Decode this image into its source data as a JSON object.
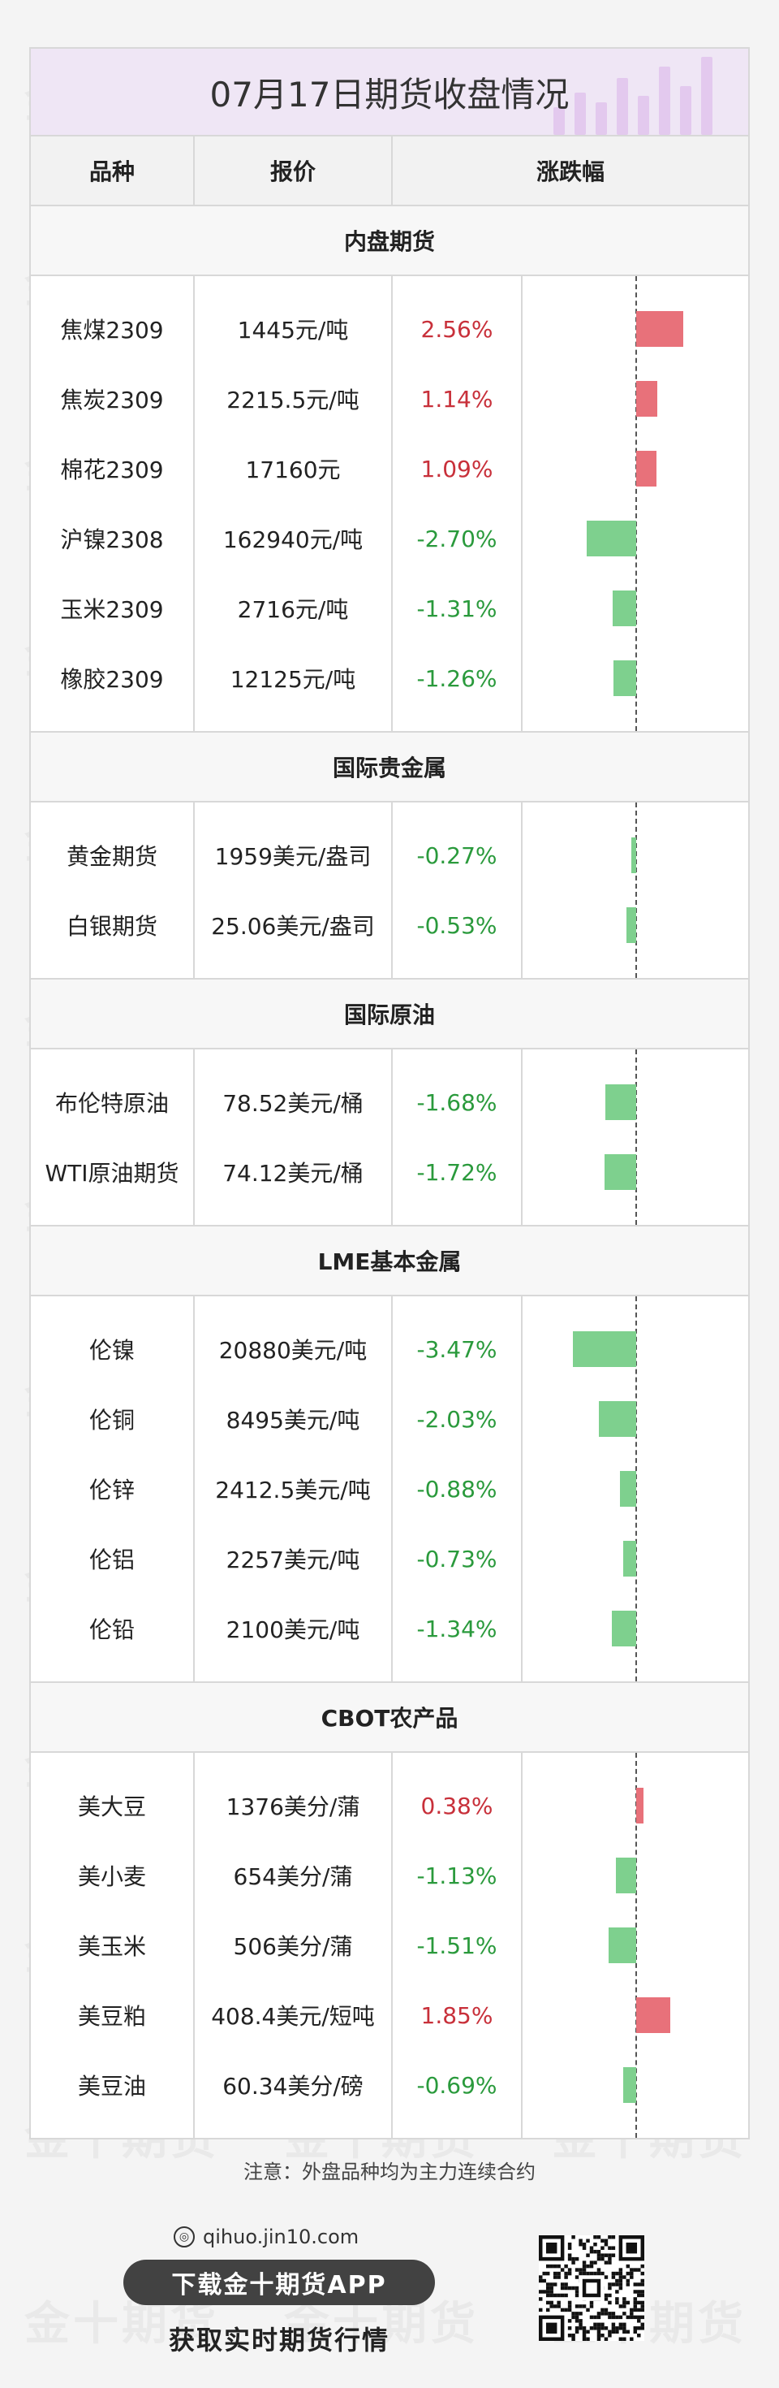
{
  "title": "07月17日期货收盘情况",
  "headers": {
    "variety": "品种",
    "price": "报价",
    "change": "涨跌幅"
  },
  "watermark": "金十期货",
  "colors": {
    "up": "#c8303a",
    "down": "#2a9a3c",
    "up_bar": "#e8717a",
    "down_bar": "#7ed08e"
  },
  "bar_scale_max_pct": 3.47,
  "sections": [
    {
      "name": "内盘期货",
      "rows": [
        {
          "name": "焦煤2309",
          "price": "1445元/吨",
          "change": "2.56%",
          "value": 2.56
        },
        {
          "name": "焦炭2309",
          "price": "2215.5元/吨",
          "change": "1.14%",
          "value": 1.14
        },
        {
          "name": "棉花2309",
          "price": "17160元",
          "change": "1.09%",
          "value": 1.09
        },
        {
          "name": "沪镍2308",
          "price": "162940元/吨",
          "change": "-2.70%",
          "value": -2.7
        },
        {
          "name": "玉米2309",
          "price": "2716元/吨",
          "change": "-1.31%",
          "value": -1.31
        },
        {
          "name": "橡胶2309",
          "price": "12125元/吨",
          "change": "-1.26%",
          "value": -1.26
        }
      ]
    },
    {
      "name": "国际贵金属",
      "rows": [
        {
          "name": "黄金期货",
          "price": "1959美元/盎司",
          "change": "-0.27%",
          "value": -0.27
        },
        {
          "name": "白银期货",
          "price": "25.06美元/盎司",
          "change": "-0.53%",
          "value": -0.53
        }
      ]
    },
    {
      "name": "国际原油",
      "rows": [
        {
          "name": "布伦特原油",
          "price": "78.52美元/桶",
          "change": "-1.68%",
          "value": -1.68
        },
        {
          "name": "WTI原油期货",
          "price": "74.12美元/桶",
          "change": "-1.72%",
          "value": -1.72
        }
      ]
    },
    {
      "name": "LME基本金属",
      "rows": [
        {
          "name": "伦镍",
          "price": "20880美元/吨",
          "change": "-3.47%",
          "value": -3.47
        },
        {
          "name": "伦铜",
          "price": "8495美元/吨",
          "change": "-2.03%",
          "value": -2.03
        },
        {
          "name": "伦锌",
          "price": "2412.5美元/吨",
          "change": "-0.88%",
          "value": -0.88
        },
        {
          "name": "伦铝",
          "price": "2257美元/吨",
          "change": "-0.73%",
          "value": -0.73
        },
        {
          "name": "伦铅",
          "price": "2100美元/吨",
          "change": "-1.34%",
          "value": -1.34
        }
      ]
    },
    {
      "name": "CBOT农产品",
      "rows": [
        {
          "name": "美大豆",
          "price": "1376美分/蒲",
          "change": "0.38%",
          "value": 0.38
        },
        {
          "name": "美小麦",
          "price": "654美分/蒲",
          "change": "-1.13%",
          "value": -1.13
        },
        {
          "name": "美玉米",
          "price": "506美分/蒲",
          "change": "-1.51%",
          "value": -1.51
        },
        {
          "name": "美豆粕",
          "price": "408.4美元/短吨",
          "change": "1.85%",
          "value": 1.85
        },
        {
          "name": "美豆油",
          "price": "60.34美分/磅",
          "change": "-0.69%",
          "value": -0.69
        }
      ]
    }
  ],
  "note": "注意：外盘品种均为主力连续合约",
  "footer": {
    "url": "qihuo.jin10.com",
    "download_label": "下载金十期货APP",
    "slogan": "获取实时期货行情"
  }
}
